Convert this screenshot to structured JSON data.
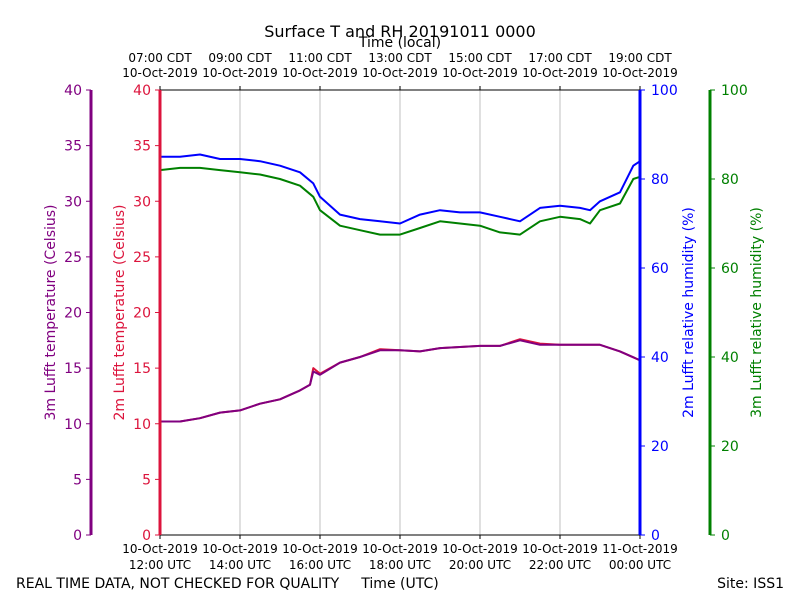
{
  "chart_data": {
    "type": "line",
    "title": "Surface T and RH 20191011 0000",
    "x_axis_bottom": {
      "label": "Time (UTC)",
      "range": [
        "2019-10-10 12:00",
        "2019-10-11 00:00"
      ],
      "ticks": [
        {
          "t": "2019-10-10 12:00",
          "date": "10-Oct-2019",
          "time": "12:00 UTC"
        },
        {
          "t": "2019-10-10 14:00",
          "date": "10-Oct-2019",
          "time": "14:00 UTC"
        },
        {
          "t": "2019-10-10 16:00",
          "date": "10-Oct-2019",
          "time": "16:00 UTC"
        },
        {
          "t": "2019-10-10 18:00",
          "date": "10-Oct-2019",
          "time": "18:00 UTC"
        },
        {
          "t": "2019-10-10 20:00",
          "date": "10-Oct-2019",
          "time": "20:00 UTC"
        },
        {
          "t": "2019-10-10 22:00",
          "date": "10-Oct-2019",
          "time": "22:00 UTC"
        },
        {
          "t": "2019-10-11 00:00",
          "date": "11-Oct-2019",
          "time": "00:00 UTC"
        }
      ]
    },
    "x_axis_top": {
      "label": "Time (local)",
      "ticks": [
        {
          "t": "2019-10-10 12:00",
          "time": "07:00 CDT",
          "date": "10-Oct-2019"
        },
        {
          "t": "2019-10-10 14:00",
          "time": "09:00 CDT",
          "date": "10-Oct-2019"
        },
        {
          "t": "2019-10-10 16:00",
          "time": "11:00 CDT",
          "date": "10-Oct-2019"
        },
        {
          "t": "2019-10-10 18:00",
          "time": "13:00 CDT",
          "date": "10-Oct-2019"
        },
        {
          "t": "2019-10-10 20:00",
          "time": "15:00 CDT",
          "date": "10-Oct-2019"
        },
        {
          "t": "2019-10-10 22:00",
          "time": "17:00 CDT",
          "date": "10-Oct-2019"
        },
        {
          "t": "2019-10-11 00:00",
          "time": "19:00 CDT",
          "date": "10-Oct-2019"
        }
      ]
    },
    "y_axes": [
      {
        "id": "t3m",
        "label": "3m Lufft temperature (Celsius)",
        "range": [
          0,
          40
        ],
        "ticks": [
          0,
          5,
          10,
          15,
          20,
          25,
          30,
          35,
          40
        ],
        "color": "#800080"
      },
      {
        "id": "t2m",
        "label": "2m Lufft temperature (Celsius)",
        "range": [
          0,
          40
        ],
        "ticks": [
          0,
          5,
          10,
          15,
          20,
          25,
          30,
          35,
          40
        ],
        "color": "#dc143c"
      },
      {
        "id": "rh2m",
        "label": "2m Lufft relative humidity (%)",
        "range": [
          0,
          100
        ],
        "ticks": [
          0,
          20,
          40,
          60,
          80,
          100
        ],
        "color": "#0000ff"
      },
      {
        "id": "rh3m",
        "label": "3m Lufft relative humidity (%)",
        "range": [
          0,
          100
        ],
        "ticks": [
          0,
          20,
          40,
          60,
          80,
          100
        ],
        "color": "#008000"
      }
    ],
    "grid": true,
    "series": [
      {
        "axis": "rh2m",
        "color": "#0000ff",
        "x": [
          "2019-10-10 12:00",
          "2019-10-10 12:30",
          "2019-10-10 13:00",
          "2019-10-10 13:30",
          "2019-10-10 14:00",
          "2019-10-10 14:30",
          "2019-10-10 15:00",
          "2019-10-10 15:30",
          "2019-10-10 15:50",
          "2019-10-10 16:00",
          "2019-10-10 16:30",
          "2019-10-10 17:00",
          "2019-10-10 17:30",
          "2019-10-10 18:00",
          "2019-10-10 18:30",
          "2019-10-10 19:00",
          "2019-10-10 19:30",
          "2019-10-10 20:00",
          "2019-10-10 20:30",
          "2019-10-10 21:00",
          "2019-10-10 21:30",
          "2019-10-10 22:00",
          "2019-10-10 22:30",
          "2019-10-10 22:45",
          "2019-10-10 23:00",
          "2019-10-10 23:30",
          "2019-10-10 23:50",
          "2019-10-11 00:00"
        ],
        "y": [
          85,
          85,
          85.5,
          84.5,
          84.5,
          84,
          83,
          81.5,
          79,
          76,
          72,
          71,
          70.5,
          70,
          72,
          73,
          72.5,
          72.5,
          71.5,
          70.5,
          73.5,
          74,
          73.5,
          73,
          75,
          77,
          83,
          84
        ]
      },
      {
        "axis": "rh3m",
        "color": "#008000",
        "x": [
          "2019-10-10 12:00",
          "2019-10-10 12:30",
          "2019-10-10 13:00",
          "2019-10-10 13:30",
          "2019-10-10 14:00",
          "2019-10-10 14:30",
          "2019-10-10 15:00",
          "2019-10-10 15:30",
          "2019-10-10 15:50",
          "2019-10-10 16:00",
          "2019-10-10 16:30",
          "2019-10-10 17:00",
          "2019-10-10 17:30",
          "2019-10-10 18:00",
          "2019-10-10 18:30",
          "2019-10-10 19:00",
          "2019-10-10 19:30",
          "2019-10-10 20:00",
          "2019-10-10 20:30",
          "2019-10-10 21:00",
          "2019-10-10 21:30",
          "2019-10-10 22:00",
          "2019-10-10 22:30",
          "2019-10-10 22:45",
          "2019-10-10 23:00",
          "2019-10-10 23:30",
          "2019-10-10 23:50",
          "2019-10-11 00:00"
        ],
        "y": [
          82,
          82.5,
          82.5,
          82,
          81.5,
          81,
          80,
          78.5,
          76,
          73,
          69.5,
          68.5,
          67.5,
          67.5,
          69,
          70.5,
          70,
          69.5,
          68,
          67.5,
          70.5,
          71.5,
          71,
          70,
          73,
          74.5,
          80,
          80.5
        ]
      },
      {
        "axis": "t2m",
        "color": "#dc143c",
        "x": [
          "2019-10-10 12:00",
          "2019-10-10 12:30",
          "2019-10-10 13:00",
          "2019-10-10 13:30",
          "2019-10-10 14:00",
          "2019-10-10 14:30",
          "2019-10-10 15:00",
          "2019-10-10 15:30",
          "2019-10-10 15:45",
          "2019-10-10 15:50",
          "2019-10-10 16:00",
          "2019-10-10 16:30",
          "2019-10-10 17:00",
          "2019-10-10 17:30",
          "2019-10-10 18:00",
          "2019-10-10 18:30",
          "2019-10-10 19:00",
          "2019-10-10 19:30",
          "2019-10-10 20:00",
          "2019-10-10 20:30",
          "2019-10-10 21:00",
          "2019-10-10 21:30",
          "2019-10-10 22:00",
          "2019-10-10 22:30",
          "2019-10-10 23:00",
          "2019-10-10 23:30",
          "2019-10-11 00:00"
        ],
        "y": [
          10.2,
          10.2,
          10.5,
          11.0,
          11.2,
          11.8,
          12.2,
          13.0,
          13.5,
          15.0,
          14.5,
          15.5,
          16.0,
          16.7,
          16.6,
          16.5,
          16.8,
          16.9,
          17.0,
          17.0,
          17.6,
          17.2,
          17.1,
          17.1,
          17.1,
          16.5,
          15.7
        ]
      },
      {
        "axis": "t3m",
        "color": "#800080",
        "x": [
          "2019-10-10 12:00",
          "2019-10-10 12:30",
          "2019-10-10 13:00",
          "2019-10-10 13:30",
          "2019-10-10 14:00",
          "2019-10-10 14:30",
          "2019-10-10 15:00",
          "2019-10-10 15:30",
          "2019-10-10 15:45",
          "2019-10-10 15:50",
          "2019-10-10 16:00",
          "2019-10-10 16:30",
          "2019-10-10 17:00",
          "2019-10-10 17:30",
          "2019-10-10 18:00",
          "2019-10-10 18:30",
          "2019-10-10 19:00",
          "2019-10-10 19:30",
          "2019-10-10 20:00",
          "2019-10-10 20:30",
          "2019-10-10 21:00",
          "2019-10-10 21:30",
          "2019-10-10 22:00",
          "2019-10-10 22:30",
          "2019-10-10 23:00",
          "2019-10-10 23:30",
          "2019-10-11 00:00"
        ],
        "y": [
          10.2,
          10.2,
          10.5,
          11.0,
          11.2,
          11.8,
          12.2,
          13.0,
          13.5,
          14.7,
          14.4,
          15.5,
          16.0,
          16.6,
          16.6,
          16.5,
          16.8,
          16.9,
          17.0,
          17.0,
          17.5,
          17.1,
          17.1,
          17.1,
          17.1,
          16.5,
          15.7
        ]
      }
    ]
  },
  "footer": {
    "quality_note": "REAL TIME DATA, NOT CHECKED FOR QUALITY",
    "site": "Site: ISS1"
  }
}
